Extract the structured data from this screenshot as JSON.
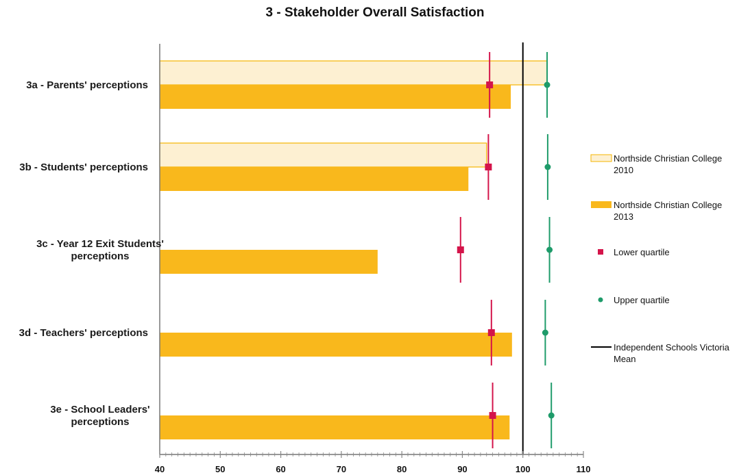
{
  "chart_data": {
    "type": "bar",
    "orientation": "horizontal",
    "title": "3 - Stakeholder Overall Satisfaction",
    "categories": [
      [
        "3a - Parents' perceptions"
      ],
      [
        "3b - Students' perceptions"
      ],
      [
        "3c - Year 12 Exit Students'",
        "perceptions"
      ],
      [
        "3d - Teachers' perceptions"
      ],
      [
        "3e - School Leaders'",
        "perceptions"
      ]
    ],
    "series": [
      {
        "name": "Northside Christian College 2010",
        "kind": "bar",
        "fill": "#fdf0d2",
        "stroke": "#f5b400",
        "values": [
          104,
          94,
          null,
          null,
          null
        ]
      },
      {
        "name": "Northside Christian College 2013",
        "kind": "bar",
        "fill": "#f9b81c",
        "stroke": "#f5b400",
        "values": [
          98,
          91,
          76,
          98.2,
          97.8
        ]
      },
      {
        "name": "Lower quartile",
        "kind": "marker",
        "marker": "square",
        "color": "#d4144a",
        "values": [
          94.5,
          94.3,
          89.7,
          94.8,
          95
        ]
      },
      {
        "name": "Upper quartile",
        "kind": "marker",
        "marker": "circle",
        "color": "#1e9b6a",
        "values": [
          104,
          104.1,
          104.4,
          103.7,
          104.7
        ]
      },
      {
        "name": "Independent Schools Victoria Mean",
        "kind": "reference_line",
        "color": "#000000",
        "value": 100
      }
    ],
    "legend": [
      {
        "lines": [
          "Northside Christian College",
          "2010"
        ],
        "symbol": "bar-light"
      },
      {
        "lines": [
          "Northside Christian College",
          "2013"
        ],
        "symbol": "bar-dark"
      },
      {
        "lines": [
          "Lower quartile"
        ],
        "symbol": "square"
      },
      {
        "lines": [
          "Upper quartile"
        ],
        "symbol": "circle"
      },
      {
        "lines": [
          "Independent Schools Victoria",
          "Mean"
        ],
        "symbol": "line"
      }
    ],
    "legend_position": "right",
    "xlim": [
      40,
      110
    ],
    "xticks": [
      40,
      50,
      60,
      70,
      80,
      90,
      100,
      110
    ],
    "xlabel": "",
    "ylabel": "",
    "grid": false
  }
}
